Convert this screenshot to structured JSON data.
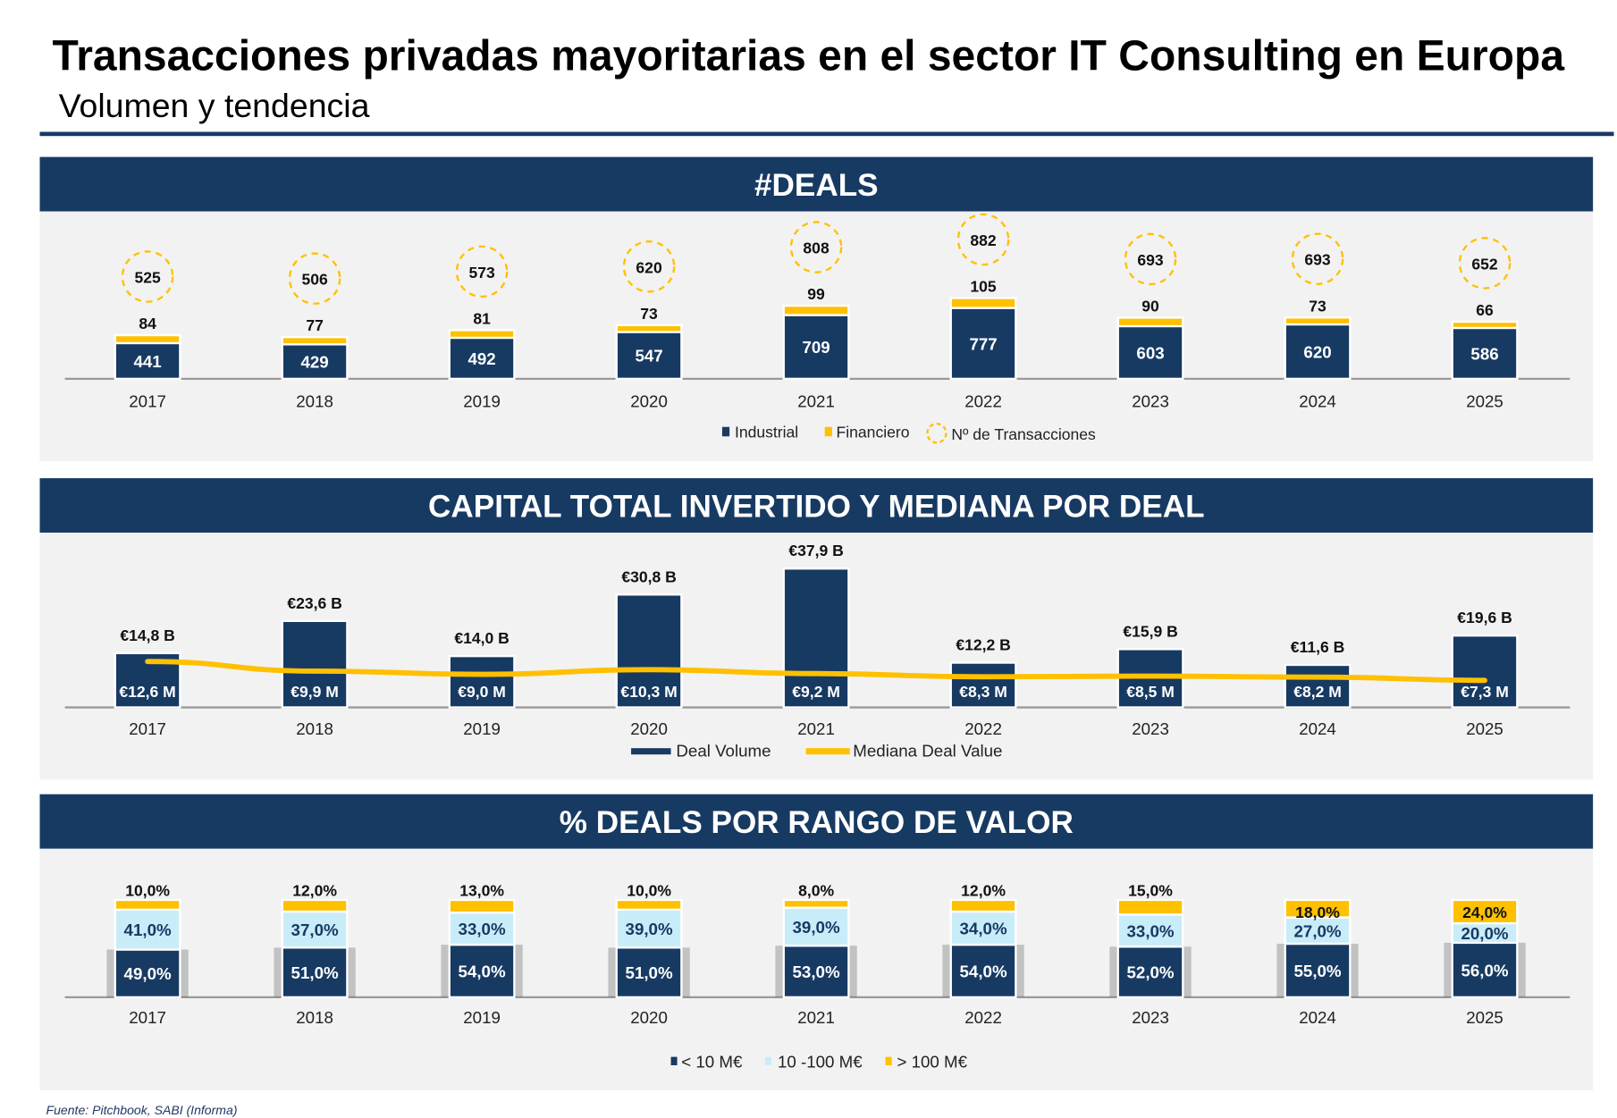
{
  "header": {
    "title": "Transacciones privadas mayoritarias en el sector IT Consulting en Europa",
    "subtitle": "Volumen y tendencia"
  },
  "footer": "Fuente: Pitchbook, SABI (Informa)",
  "colors": {
    "navy": "#173a63",
    "yellow": "#ffc000",
    "light_blue": "#c9ecf9",
    "panel": "#f2f2f2"
  },
  "chart_data": [
    {
      "type": "bar",
      "stacked": true,
      "title": "#DEALS",
      "categories": [
        "2017",
        "2018",
        "2019",
        "2020",
        "2021",
        "2022",
        "2023",
        "2024",
        "2025"
      ],
      "series": [
        {
          "name": "Industrial",
          "values": [
            441,
            429,
            492,
            547,
            709,
            777,
            603,
            620,
            586
          ]
        },
        {
          "name": "Financiero",
          "values": [
            84,
            77,
            81,
            73,
            99,
            105,
            90,
            73,
            66
          ]
        },
        {
          "name": "Nº de Transacciones",
          "values": [
            525,
            506,
            573,
            620,
            808,
            882,
            693,
            693,
            652
          ]
        }
      ],
      "legend": [
        "Industrial",
        "Financiero",
        "Nº de Transacciones"
      ],
      "legend_position": "bottom"
    },
    {
      "type": "bar",
      "title": "CAPITAL TOTAL INVERTIDO Y MEDIANA POR DEAL",
      "categories": [
        "2017",
        "2018",
        "2019",
        "2020",
        "2021",
        "2022",
        "2023",
        "2024",
        "2025"
      ],
      "series": [
        {
          "name": "Deal Volume",
          "unit": "B€",
          "values": [
            14.8,
            23.6,
            14.0,
            30.8,
            37.9,
            12.2,
            15.9,
            11.6,
            19.6
          ],
          "labels": [
            "€14,8 B",
            "€23,6 B",
            "€14,0 B",
            "€30,8 B",
            "€37,9 B",
            "€12,2 B",
            "€15,9 B",
            "€11,6 B",
            "€19,6 B"
          ]
        },
        {
          "name": "Mediana Deal Value",
          "type": "line",
          "unit": "M€",
          "values": [
            12.6,
            9.9,
            9.0,
            10.3,
            9.2,
            8.3,
            8.5,
            8.2,
            7.3
          ],
          "labels": [
            "€12,6 M",
            "€9,9 M",
            "€9,0 M",
            "€10,3 M",
            "€9,2 M",
            "€8,3 M",
            "€8,5 M",
            "€8,2 M",
            "€7,3 M"
          ]
        }
      ],
      "legend": [
        "Deal Volume",
        "Mediana Deal Value"
      ],
      "legend_position": "bottom"
    },
    {
      "type": "bar",
      "stacked": true,
      "percent": true,
      "title": "% DEALS POR RANGO DE VALOR",
      "categories": [
        "2017",
        "2018",
        "2019",
        "2020",
        "2021",
        "2022",
        "2023",
        "2024",
        "2025"
      ],
      "series": [
        {
          "name": "< 10 M€",
          "values": [
            49,
            51,
            54,
            51,
            53,
            54,
            52,
            55,
            56
          ],
          "labels": [
            "49,0%",
            "51,0%",
            "54,0%",
            "51,0%",
            "53,0%",
            "54,0%",
            "52,0%",
            "55,0%",
            "56,0%"
          ]
        },
        {
          "name": "10 -100 M€",
          "values": [
            41,
            37,
            33,
            39,
            39,
            34,
            33,
            27,
            20
          ],
          "labels": [
            "41,0%",
            "37,0%",
            "33,0%",
            "39,0%",
            "39,0%",
            "34,0%",
            "33,0%",
            "27,0%",
            "20,0%"
          ]
        },
        {
          "name": "> 100 M€",
          "values": [
            10,
            12,
            13,
            10,
            8,
            12,
            15,
            18,
            24
          ],
          "labels": [
            "10,0%",
            "12,0%",
            "13,0%",
            "10,0%",
            "8,0%",
            "12,0%",
            "15,0%",
            "18,0%",
            "24,0%"
          ]
        }
      ],
      "legend": [
        "< 10 M€",
        "10 -100 M€",
        "> 100 M€"
      ],
      "legend_position": "bottom"
    }
  ]
}
